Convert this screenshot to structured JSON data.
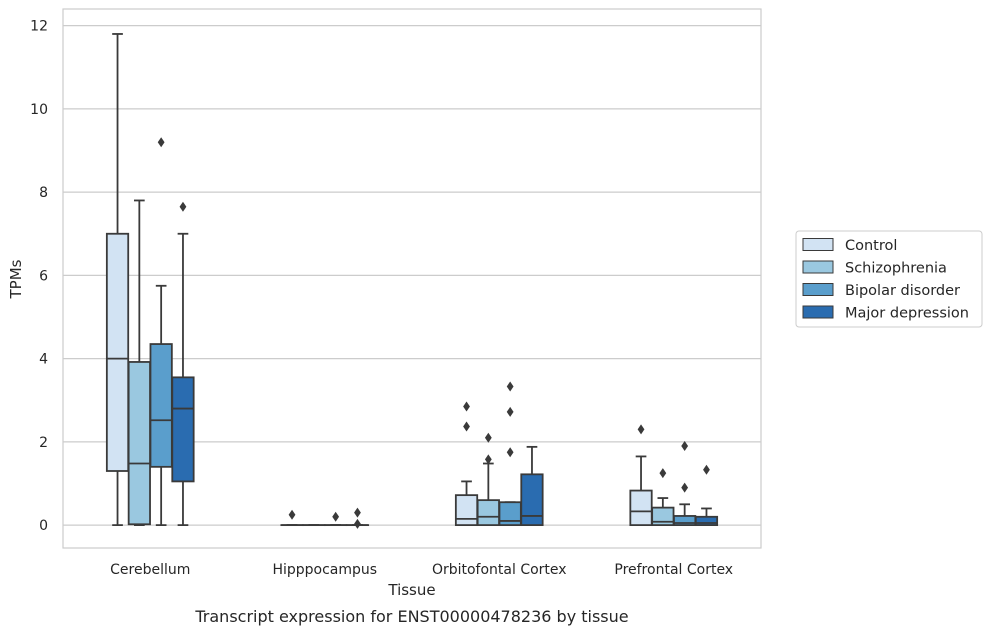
{
  "chart_data": {
    "type": "box",
    "xlabel": "Tissue",
    "ylabel": "TPMs",
    "caption": "Transcript expression for ENST00000478236 by tissue",
    "ylim": [
      -0.55,
      12.4
    ],
    "yticks": [
      "0",
      "2",
      "4",
      "6",
      "8",
      "10",
      "12"
    ],
    "grid": "horizontal",
    "legend_position": "right",
    "categories": [
      "Cerebellum",
      "Hipppocampus",
      "Orbitofontal Cortex",
      "Prefrontal Cortex"
    ],
    "series": [
      {
        "name": "Control",
        "color": "#d2e3f3",
        "boxes": [
          {
            "whislo": 0,
            "q1": 1.3,
            "med": 4.0,
            "q3": 7.0,
            "whishi": 11.8,
            "fliers": []
          },
          {
            "whislo": 0,
            "q1": 0,
            "med": 0,
            "q3": 0,
            "whishi": 0,
            "fliers": [
              0.25
            ]
          },
          {
            "whislo": 0,
            "q1": 0,
            "med": 0.15,
            "q3": 0.72,
            "whishi": 1.05,
            "fliers": [
              2.37,
              2.85
            ]
          },
          {
            "whislo": 0,
            "q1": 0,
            "med": 0.33,
            "q3": 0.83,
            "whishi": 1.65,
            "fliers": [
              2.3
            ]
          }
        ]
      },
      {
        "name": "Schizophrenia",
        "color": "#9ac8e0",
        "boxes": [
          {
            "whislo": 0,
            "q1": 0.02,
            "med": 1.48,
            "q3": 3.92,
            "whishi": 7.8,
            "fliers": []
          },
          {
            "whislo": 0,
            "q1": 0,
            "med": 0,
            "q3": 0,
            "whishi": 0,
            "fliers": []
          },
          {
            "whislo": 0,
            "q1": 0,
            "med": 0.2,
            "q3": 0.6,
            "whishi": 1.48,
            "fliers": [
              1.58,
              2.1
            ]
          },
          {
            "whislo": 0,
            "q1": 0,
            "med": 0.08,
            "q3": 0.42,
            "whishi": 0.65,
            "fliers": [
              1.25
            ]
          }
        ]
      },
      {
        "name": "Bipolar disorder",
        "color": "#5a9ecc",
        "boxes": [
          {
            "whislo": 0,
            "q1": 1.4,
            "med": 2.52,
            "q3": 4.35,
            "whishi": 5.75,
            "fliers": [
              9.2
            ]
          },
          {
            "whislo": 0,
            "q1": 0,
            "med": 0,
            "q3": 0,
            "whishi": 0,
            "fliers": [
              0.2
            ]
          },
          {
            "whislo": 0,
            "q1": 0,
            "med": 0.1,
            "q3": 0.55,
            "whishi": 0.55,
            "fliers": [
              1.75,
              2.72,
              3.33
            ]
          },
          {
            "whislo": 0,
            "q1": 0,
            "med": 0.05,
            "q3": 0.22,
            "whishi": 0.5,
            "fliers": [
              0.9,
              1.9
            ]
          }
        ]
      },
      {
        "name": "Major depression",
        "color": "#2a6cb0",
        "boxes": [
          {
            "whislo": 0,
            "q1": 1.05,
            "med": 2.8,
            "q3": 3.55,
            "whishi": 7.0,
            "fliers": [
              7.65
            ]
          },
          {
            "whislo": 0,
            "q1": 0,
            "med": 0,
            "q3": 0,
            "whishi": 0,
            "fliers": [
              0.03,
              0.3
            ]
          },
          {
            "whislo": 0,
            "q1": 0,
            "med": 0.22,
            "q3": 1.22,
            "whishi": 1.88,
            "fliers": []
          },
          {
            "whislo": 0,
            "q1": 0,
            "med": 0.05,
            "q3": 0.2,
            "whishi": 0.4,
            "fliers": [
              1.33
            ]
          }
        ]
      }
    ]
  }
}
